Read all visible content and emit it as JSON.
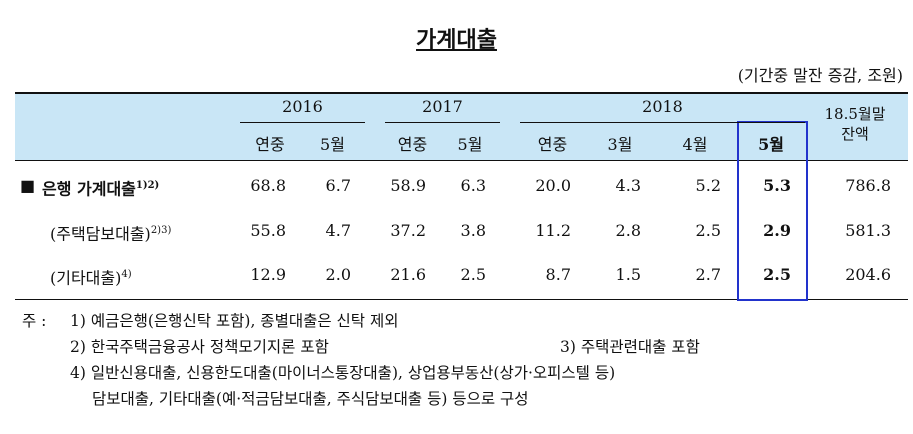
{
  "title": "가계대출",
  "unit": "(기간중 말잔 증감, 조원)",
  "table": {
    "years": [
      "2016",
      "2017",
      "2018"
    ],
    "balance_header": [
      "18.5월말",
      "잔액"
    ],
    "subheaders": [
      "연중",
      "5월",
      "연중",
      "5월",
      "연중",
      "3월",
      "4월",
      "5월"
    ],
    "rows": [
      {
        "marker": "■",
        "label": "은행 가계대출",
        "note": "1)2)",
        "cells": [
          "68.8",
          "6.7",
          "58.9",
          "6.3",
          "20.0",
          "4.3",
          "5.2",
          "5.3",
          "786.8"
        ]
      },
      {
        "label": "(주택담보대출)",
        "note": "2)3)",
        "cells": [
          "55.8",
          "4.7",
          "37.2",
          "3.8",
          "11.2",
          "2.8",
          "2.5",
          "2.9",
          "581.3"
        ]
      },
      {
        "label": "(기타대출)",
        "note": "4)",
        "cells": [
          "12.9",
          "2.0",
          "21.6",
          "2.5",
          "8.7",
          "1.5",
          "2.7",
          "2.5",
          "204.6"
        ]
      }
    ]
  },
  "notes": {
    "prefix": "주 :",
    "items": [
      "1) 예금은행(은행신탁 포함), 종별대출은 신탁 제외",
      "2) 한국주택금융공사 정책모기지론 포함",
      "3) 주택관련대출 포함",
      "4) 일반신용대출, 신용한도대출(마이너스통장대출), 상업용부동산(상가·오피스텔 등)",
      "담보대출, 기타대출(예·적금담보대출, 주식담보대출 등) 등으로 구성"
    ]
  }
}
